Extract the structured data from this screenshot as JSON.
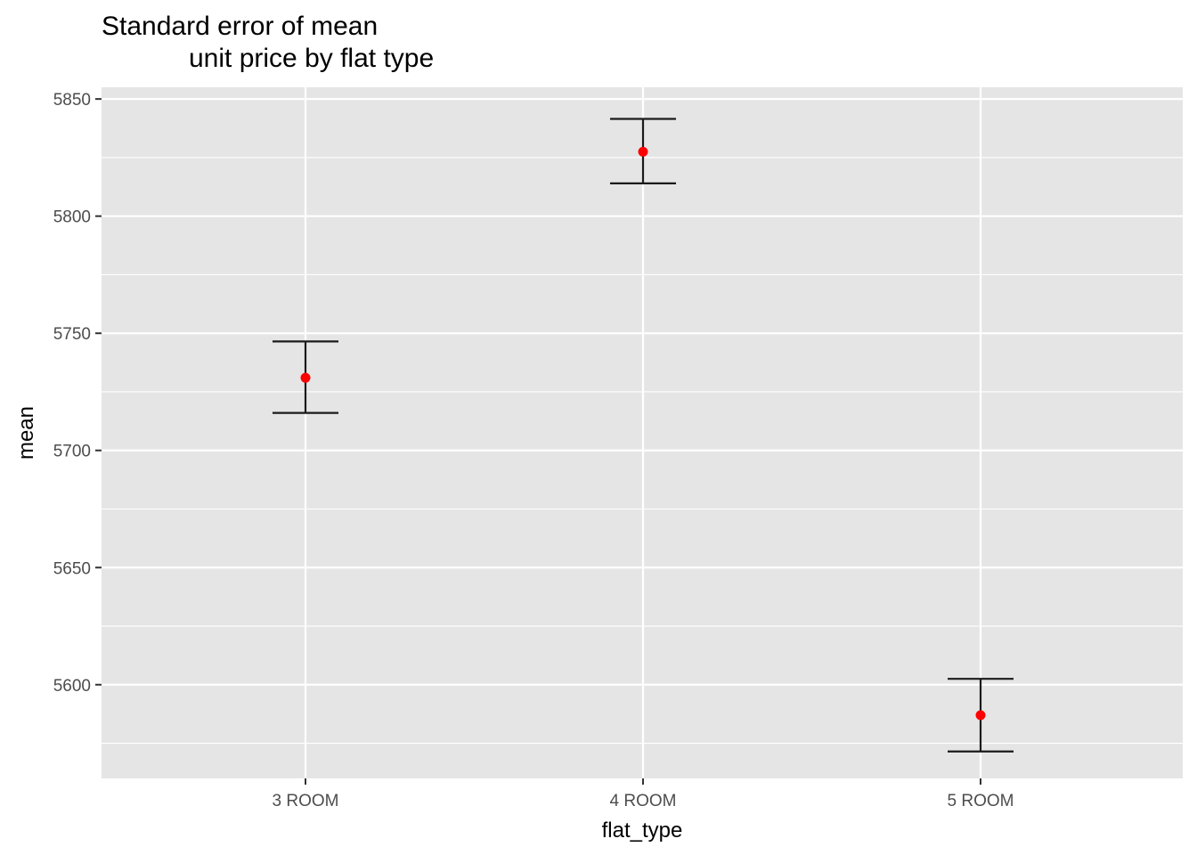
{
  "chart_data": {
    "type": "errorbar",
    "title": "Standard error of mean",
    "subtitle": "unit price by flat type",
    "xlabel": "flat_type",
    "ylabel": "mean",
    "categories": [
      "3 ROOM",
      "4 ROOM",
      "5 ROOM"
    ],
    "series": [
      {
        "values": [
          5731,
          5827.5,
          5587
        ],
        "lower": [
          5716,
          5814,
          5571.5
        ],
        "upper": [
          5746.5,
          5841.5,
          5602.5
        ]
      }
    ],
    "ylim": [
      5560,
      5855
    ],
    "yticks": [
      5600,
      5650,
      5700,
      5750,
      5800,
      5850
    ],
    "grid": true,
    "colors": {
      "panel_background": "#e5e5e5",
      "grid": "#ffffff",
      "point": "#ff0000",
      "errorbar": "#1a1a1a",
      "tick_text": "#4d4d4d"
    }
  }
}
